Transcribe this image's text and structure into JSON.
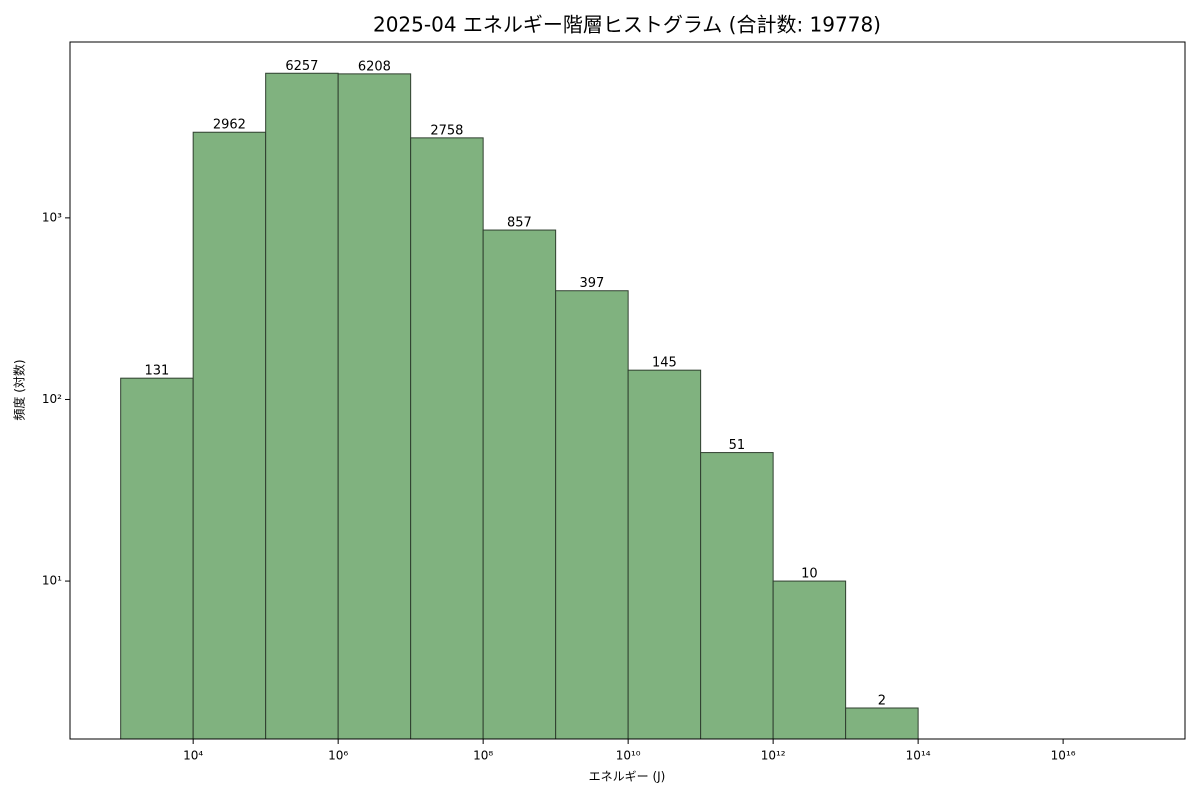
{
  "chart_data": {
    "type": "histogram",
    "title": "2025-04 エネルギー階層ヒストグラム (合計数: 19778)",
    "xlabel": "エネルギー (J)",
    "ylabel": "頻度 (対数)",
    "bins": [
      1000,
      10000,
      100000,
      1000000,
      10000000,
      100000000,
      1000000000,
      10000000000,
      100000000000,
      1000000000000,
      10000000000000,
      100000000000000
    ],
    "values": [
      131,
      2962,
      6257,
      6208,
      2758,
      857,
      397,
      145,
      51,
      10,
      2
    ],
    "color": "#80b27f",
    "edgecolor": "#2f3f2f",
    "xscale": "log",
    "yscale": "log",
    "xlim": [
      200,
      480000000000000000
    ],
    "ylim": [
      1.35,
      9300
    ],
    "xticks": [
      {
        "value": 10000,
        "label": "10⁴"
      },
      {
        "value": 1000000,
        "label": "10⁶"
      },
      {
        "value": 100000000,
        "label": "10⁸"
      },
      {
        "value": 10000000000,
        "label": "10¹⁰"
      },
      {
        "value": 1000000000000,
        "label": "10¹²"
      },
      {
        "value": 100000000000000,
        "label": "10¹⁴"
      },
      {
        "value": 10000000000000000,
        "label": "10¹⁶"
      }
    ],
    "yticks": [
      {
        "value": 10,
        "label": "10¹"
      },
      {
        "value": 100,
        "label": "10²"
      },
      {
        "value": 1000,
        "label": "10³"
      }
    ]
  }
}
